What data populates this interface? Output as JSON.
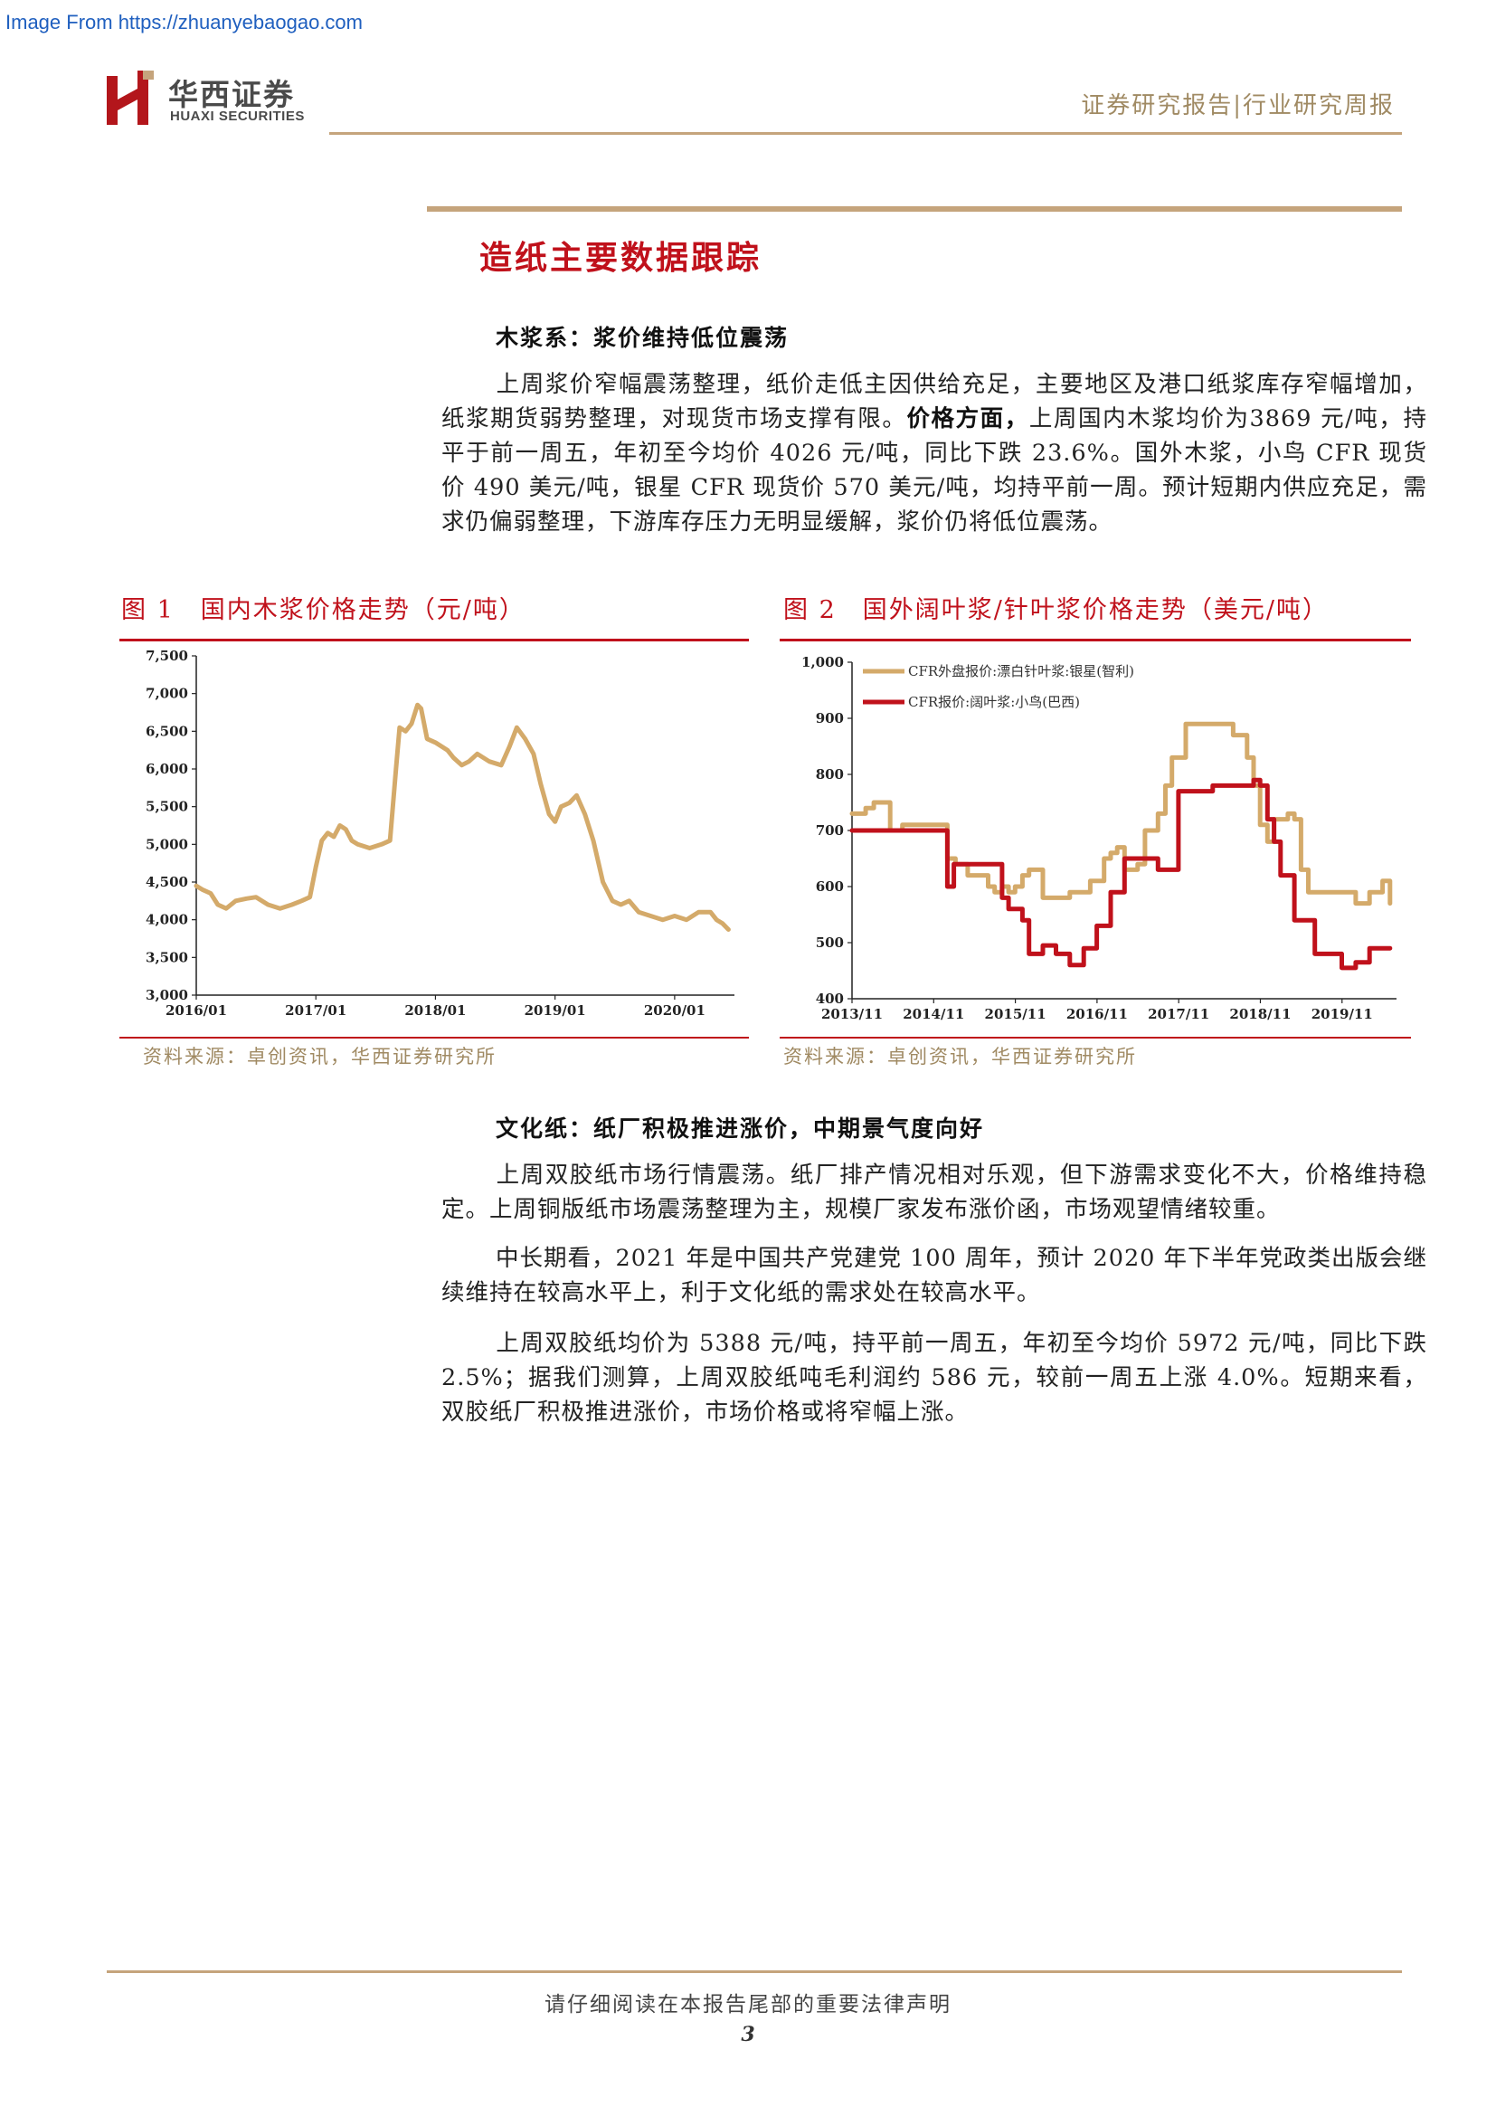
{
  "watermark": "Image From https://zhuanyebaogao.com",
  "header": {
    "logo_cn": "华西证券",
    "logo_en": "HUAXI SECURITIES",
    "report_type": "证券研究报告|行业研究周报"
  },
  "section_title": "造纸主要数据跟踪",
  "pulp": {
    "heading": "木浆系：浆价维持低位震荡",
    "para_a": "上周浆价窄幅震荡整理，纸价走低主因供给充足，主要地区及港口纸浆库存窄幅增加， 纸浆期货弱势整理，对现货市场支撑有限。",
    "para_bold": "价格方面，",
    "para_b": "上周国内木浆均价为3869 元/吨，持平于前一周五，年初至今均价 4026 元/吨，同比下跌 23.6%。国外木浆，小鸟 CFR 现货价 490 美元/吨，银星 CFR 现货价 570 美元/吨，均持平前一周。预计短期内供应充足，需求仍偏弱整理，下游库存压力无明显缓解，浆价仍将低位震荡。"
  },
  "figures": {
    "fig1_title": "图 1　国内木浆价格走势（元/吨）",
    "fig2_title": "图 2　国外阔叶浆/针叶浆价格走势（美元/吨）",
    "fig1_source": "资料来源：卓创资讯，华西证券研究所",
    "fig2_source": "资料来源：卓创资讯，华西证券研究所"
  },
  "cultural": {
    "heading": "文化纸：纸厂积极推进涨价，中期景气度向好",
    "p1": "上周双胶纸市场行情震荡。纸厂排产情况相对乐观，但下游需求变化不大，价格维持稳定。上周铜版纸市场震荡整理为主，规模厂家发布涨价函，市场观望情绪较重。",
    "p2": "中长期看，2021 年是中国共产党建党 100 周年，预计 2020 年下半年党政类出版会继续维持在较高水平上，利于文化纸的需求处在较高水平。",
    "p3": "上周双胶纸均价为 5388 元/吨，持平前一周五，年初至今均价 5972 元/吨，同比下跌 2.5%；据我们测算，上周双胶纸吨毛利润约 586 元，较前一周五上涨 4.0%。短期来看，双胶纸厂积极推进涨价，市场价格或将窄幅上涨。"
  },
  "footer": {
    "note": "请仔细阅读在本报告尾部的重要法律声明",
    "page": "3"
  },
  "chart_data": [
    {
      "type": "line",
      "title": "国内木浆价格走势（元/吨）",
      "color": "#d4aa6a",
      "ylim": [
        3000,
        7500
      ],
      "yticks": [
        "3,000",
        "3,500",
        "4,000",
        "4,500",
        "5,000",
        "5,500",
        "6,000",
        "6,500",
        "7,000",
        "7,500"
      ],
      "ytick_values": [
        3000,
        3500,
        4000,
        4500,
        5000,
        5500,
        6000,
        6500,
        7000,
        7500
      ],
      "xlim": [
        2016.0,
        2020.5
      ],
      "xticks": [
        "2016/01",
        "2017/01",
        "2018/01",
        "2019/01",
        "2020/01"
      ],
      "xtick_values": [
        2016.0,
        2017.0,
        2018.0,
        2019.0,
        2020.0
      ],
      "grid": false,
      "series": [
        {
          "x": [
            2016.0,
            2016.05,
            2016.12,
            2016.18,
            2016.25,
            2016.33,
            2016.42,
            2016.5,
            2016.6,
            2016.7,
            2016.8,
            2016.88,
            2016.95,
            2017.0,
            2017.05,
            2017.1,
            2017.15,
            2017.2,
            2017.25,
            2017.3,
            2017.35,
            2017.45,
            2017.55,
            2017.62,
            2017.67,
            2017.7,
            2017.75,
            2017.8,
            2017.85,
            2017.88,
            2017.93,
            2018.0,
            2018.1,
            2018.15,
            2018.22,
            2018.28,
            2018.35,
            2018.45,
            2018.55,
            2018.62,
            2018.68,
            2018.75,
            2018.82,
            2018.88,
            2018.95,
            2019.0,
            2019.05,
            2019.12,
            2019.18,
            2019.25,
            2019.32,
            2019.4,
            2019.48,
            2019.55,
            2019.62,
            2019.7,
            2019.8,
            2019.9,
            2020.0,
            2020.1,
            2020.2,
            2020.3,
            2020.35,
            2020.4,
            2020.45
          ],
          "y": [
            4450,
            4400,
            4350,
            4200,
            4150,
            4250,
            4280,
            4300,
            4200,
            4150,
            4200,
            4250,
            4300,
            4700,
            5050,
            5150,
            5100,
            5250,
            5200,
            5050,
            5000,
            4950,
            5000,
            5050,
            6000,
            6550,
            6500,
            6600,
            6850,
            6800,
            6400,
            6350,
            6250,
            6150,
            6050,
            6100,
            6200,
            6100,
            6050,
            6300,
            6550,
            6400,
            6200,
            5800,
            5400,
            5300,
            5500,
            5550,
            5650,
            5400,
            5050,
            4500,
            4250,
            4200,
            4250,
            4100,
            4050,
            4000,
            4050,
            4000,
            4100,
            4100,
            4000,
            3950,
            3870
          ]
        }
      ]
    },
    {
      "type": "line",
      "ylim": [
        400,
        1000
      ],
      "yticks": [
        "400",
        "500",
        "600",
        "700",
        "800",
        "900",
        "1,000"
      ],
      "ytick_values": [
        400,
        500,
        600,
        700,
        800,
        900,
        1000
      ],
      "xlim": [
        2013.833,
        2020.5
      ],
      "xticks": [
        "2013/11",
        "2014/11",
        "2015/11",
        "2016/11",
        "2017/11",
        "2018/11",
        "2019/11"
      ],
      "xtick_values": [
        2013.833,
        2014.833,
        2015.833,
        2016.833,
        2017.833,
        2018.833,
        2019.833
      ],
      "grid": false,
      "legend": "top-left",
      "series": [
        {
          "name": "CFR外盘报价:漂白针叶浆:银星(智利)",
          "color": "#d4aa6a",
          "step": true,
          "x": [
            2013.833,
            2014.0,
            2014.1,
            2014.3,
            2014.45,
            2014.55,
            2015.0,
            2015.1,
            2015.25,
            2015.5,
            2015.58,
            2015.67,
            2015.75,
            2015.83,
            2015.92,
            2016.0,
            2016.17,
            2016.33,
            2016.5,
            2016.75,
            2016.92,
            2017.0,
            2017.08,
            2017.17,
            2017.33,
            2017.42,
            2017.58,
            2017.67,
            2017.75,
            2017.92,
            2018.0,
            2018.25,
            2018.5,
            2018.67,
            2018.75,
            2018.83,
            2018.92,
            2019.0,
            2019.17,
            2019.25,
            2019.33,
            2019.42,
            2019.5,
            2019.75,
            2020.0,
            2020.17,
            2020.33,
            2020.42
          ],
          "y": [
            730,
            740,
            750,
            700,
            710,
            710,
            650,
            640,
            620,
            600,
            590,
            600,
            590,
            600,
            620,
            630,
            580,
            580,
            590,
            610,
            650,
            660,
            670,
            630,
            640,
            700,
            730,
            780,
            830,
            890,
            890,
            890,
            870,
            830,
            780,
            710,
            680,
            720,
            730,
            720,
            630,
            590,
            590,
            590,
            570,
            590,
            610,
            570
          ]
        },
        {
          "name": "CFR报价:阔叶浆:小鸟(巴西)",
          "color": "#c0111b",
          "step": true,
          "x": [
            2013.833,
            2014.5,
            2015.0,
            2015.08,
            2015.5,
            2015.67,
            2015.75,
            2015.92,
            2016.0,
            2016.17,
            2016.33,
            2016.5,
            2016.67,
            2016.83,
            2017.0,
            2017.17,
            2017.58,
            2017.83,
            2018.0,
            2018.25,
            2018.5,
            2018.75,
            2018.83,
            2018.92,
            2019.0,
            2019.08,
            2019.25,
            2019.5,
            2019.83,
            2020.0,
            2020.17,
            2020.42
          ],
          "y": [
            700,
            700,
            600,
            640,
            640,
            580,
            560,
            540,
            480,
            495,
            480,
            460,
            490,
            530,
            590,
            650,
            630,
            770,
            770,
            780,
            780,
            790,
            780,
            720,
            680,
            620,
            540,
            480,
            455,
            465,
            490,
            490
          ]
        }
      ]
    }
  ]
}
